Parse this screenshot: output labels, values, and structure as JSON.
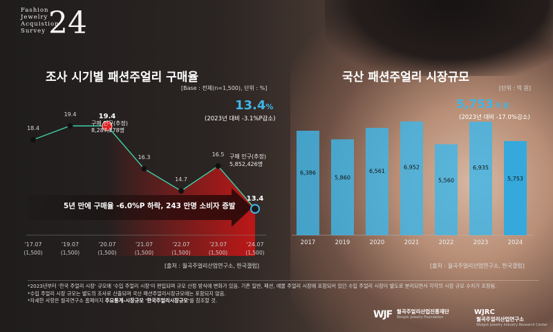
{
  "logo": {
    "line1": "Fashion",
    "line2": "Jewelry",
    "line3": "Acquistion",
    "line4": "Survey",
    "number": "24"
  },
  "left": {
    "title": "조사 시기별 패션주얼리 구매율",
    "base_note": "[Base : 전체(n=1,500), 단위 : %]",
    "highlight_value": "13.4",
    "highlight_unit": "%",
    "highlight_sub": "(2023년 대비 -3.1%P감소)",
    "annot1_l1": "구매 인구(추정)",
    "annot1_l2": "8,287,278명",
    "annot2_l1": "구매 인구(추정)",
    "annot2_l2": "5,852,426명",
    "arrow_text": "5년 만에 구매율 -6.0%P 하락, 243 만명 소비자 증발",
    "source": "[출처 : 월곡주얼리산업연구소, 한국갤럽]"
  },
  "right": {
    "title": "국산 패션주얼리 시장규모",
    "unit_note": "[단위 : 억 원]",
    "highlight_value": "5,753",
    "highlight_unit": "억 원",
    "highlight_sub": "(2023년 대비 -17.0%감소)",
    "source": "[출처 : 월곡주얼리산업연구소, 한국갤럽]"
  },
  "footnotes": {
    "n1": "*2023년부터 '한국 주얼리 시장' 규모에 '수입 주얼리 시장'이 편입되며 규모 산정 방식에 변화가 있음. 기존 일반, 패션, 예물 주얼리 시장에 포함되어 있던 수입 주얼리 시장이 별도로 분리되면서 각각의 시장 규모 수치가 조정됨.",
    "n2": "*수입 주얼리 시장 규모는 별도의 조사로 산출되며 국산 패션주얼리시장규모에는 포함되지 않음.",
    "n3_pre": "*자세한 사항은 월곡연구소 홈페이지 ",
    "n3_bold": "주요통계-시장규모 '한국주얼리시장규모'",
    "n3_post": "를 참조할 것."
  },
  "brands": {
    "b1_mark": "WJF",
    "b1_name": "월곡주얼리산업진흥재단",
    "b1_en": "Wolgok Jewelry Foundation",
    "b2_mark": "WJRC",
    "b2_name": "월곡주얼리산업연구소",
    "b2_en": "Wolgok Jewelry Industry Research Center"
  },
  "colors": {
    "line": "#3fd1a8",
    "highlight": "#3fb6e8",
    "bar": "#3fb6e8",
    "bar_last": "#35a9dc",
    "point_hi": "#e02020",
    "red": "#c41616"
  },
  "chart_data": [
    {
      "type": "line",
      "title": "조사 시기별 패션주얼리 구매율",
      "categories": [
        "'17.07",
        "'19.07",
        "'20.07",
        "'21.07",
        "'22.07",
        "'23.07",
        "'24.07"
      ],
      "sample_sizes": [
        "(1,500)",
        "(1,500)",
        "(1,500)",
        "(1,500)",
        "(1,500)",
        "(1,500)",
        "(1,500)"
      ],
      "values": [
        18.4,
        19.4,
        19.4,
        16.3,
        14.7,
        16.5,
        13.4
      ],
      "labels": [
        "18.4",
        "19.4",
        "19.4",
        "16.3",
        "14.7",
        "16.5",
        "13.4"
      ],
      "ylim": [
        10,
        21
      ],
      "grid": false
    },
    {
      "type": "bar",
      "title": "국산 패션주얼리 시장규모",
      "categories": [
        "2017",
        "2019",
        "2020",
        "2021",
        "2022",
        "2023",
        "2024"
      ],
      "values": [
        6386,
        5860,
        6561,
        6952,
        5560,
        6935,
        5753
      ],
      "labels": [
        "6,386",
        "5,860",
        "6,561",
        "6,952",
        "5,560",
        "6,935",
        "5,753"
      ],
      "ylim": [
        0,
        7400
      ],
      "grid": false
    }
  ]
}
